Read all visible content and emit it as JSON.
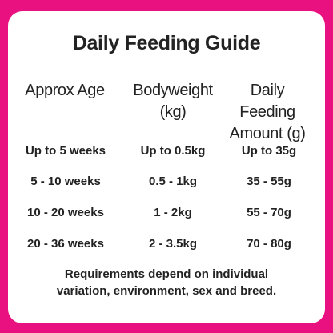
{
  "colors": {
    "frame": "#e8117f",
    "card": "#ffffff",
    "text": "#222222"
  },
  "title": "Daily Feeding Guide",
  "headers": [
    {
      "line1": "Approx Age",
      "line2": ""
    },
    {
      "line1": "Bodyweight",
      "line2": "(kg)"
    },
    {
      "line1": "Daily Feeding",
      "line2": "Amount (g)"
    }
  ],
  "rows": [
    {
      "age": "Up to 5 weeks",
      "bodyweight": "Up to 0.5kg",
      "amount": "Up to 35g"
    },
    {
      "age": "5 - 10 weeks",
      "bodyweight": "0.5 - 1kg",
      "amount": "35 - 55g"
    },
    {
      "age": "10 - 20 weeks",
      "bodyweight": "1 - 2kg",
      "amount": "55 - 70g"
    },
    {
      "age": "20 - 36 weeks",
      "bodyweight": "2 - 3.5kg",
      "amount": "70 - 80g"
    }
  ],
  "note": {
    "line1": "Requirements depend on individual",
    "line2": "variation, environment, sex and breed."
  }
}
